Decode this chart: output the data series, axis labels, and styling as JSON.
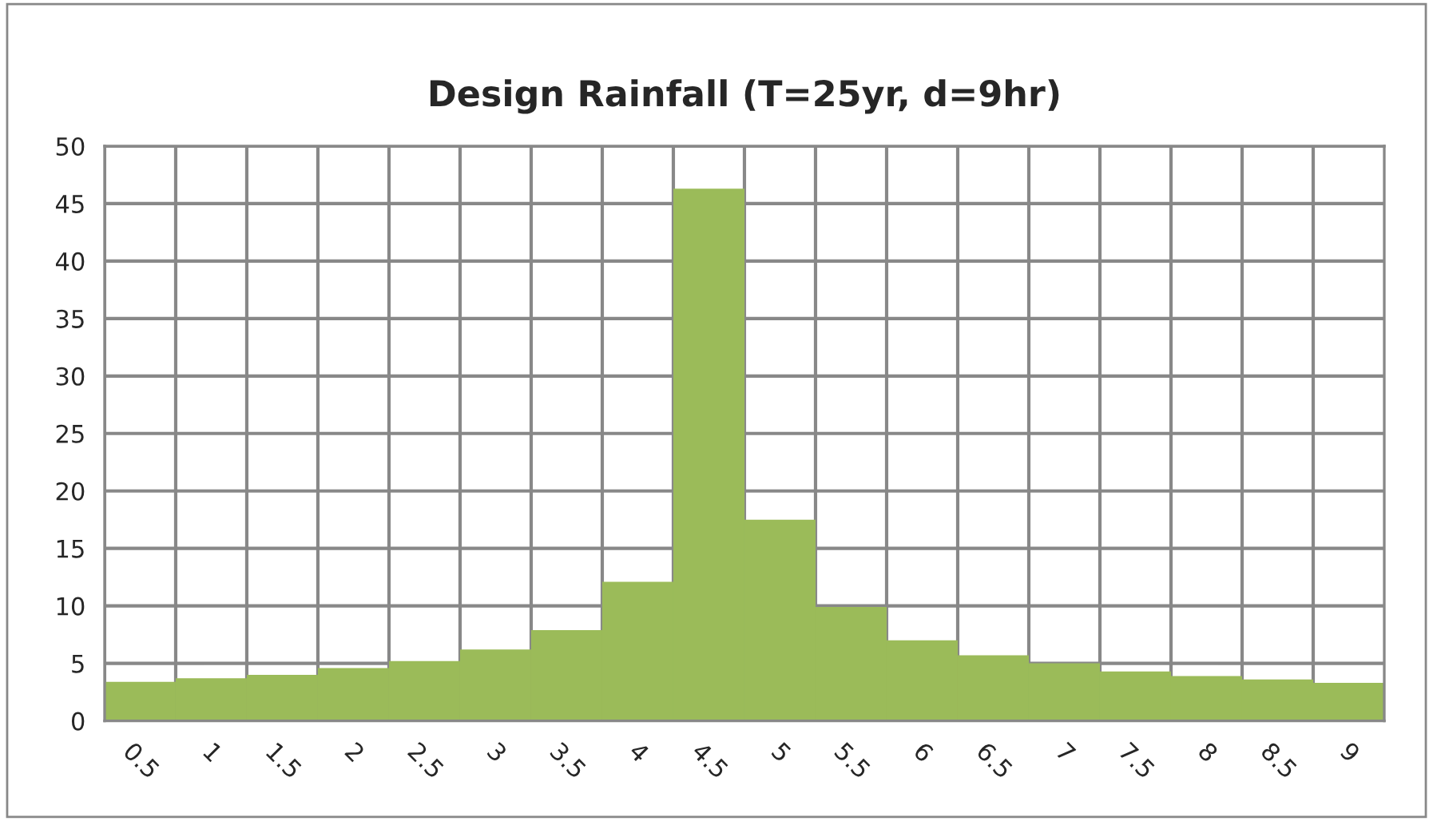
{
  "chart_data": {
    "type": "bar",
    "title": "Design Rainfall (T=25yr, d=9hr)",
    "categories": [
      "0.5",
      "1",
      "1.5",
      "2",
      "2.5",
      "3",
      "3.5",
      "4",
      "4.5",
      "5",
      "5.5",
      "6",
      "6.5",
      "7",
      "7.5",
      "8",
      "8.5",
      "9"
    ],
    "values": [
      3.4,
      3.7,
      4.0,
      4.6,
      5.2,
      6.2,
      7.9,
      12.1,
      46.3,
      17.5,
      9.9,
      7.0,
      5.7,
      5.0,
      4.3,
      3.9,
      3.6,
      3.3
    ],
    "color": "#9bbb59",
    "ylim": [
      0,
      50
    ],
    "yticks": [
      0,
      5,
      10,
      15,
      20,
      25,
      30,
      35,
      40,
      45,
      50
    ],
    "grid": true
  }
}
